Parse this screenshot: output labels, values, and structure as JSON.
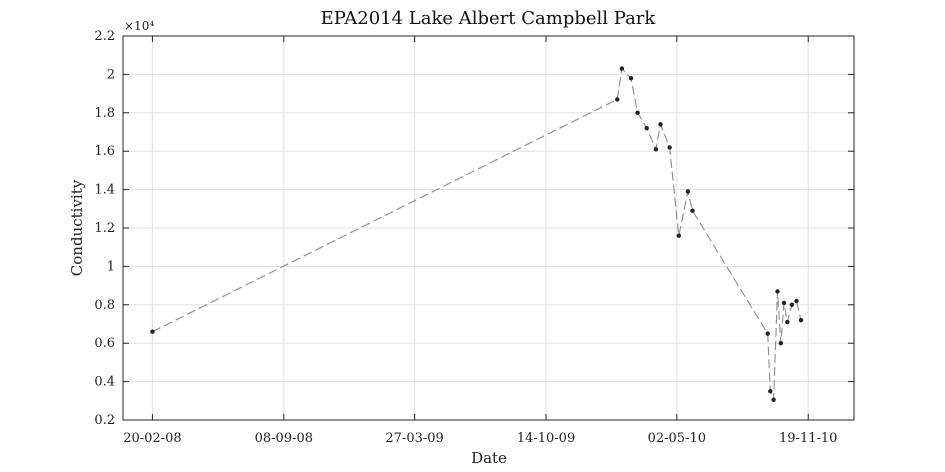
{
  "chart_data": {
    "type": "line",
    "title": "EPA2014 Lake Albert Campbell Park",
    "xlabel": "Date",
    "ylabel": "Conductivity",
    "y_exponent_label": "×10⁴",
    "y_tick_labels": [
      "0.2",
      "0.4",
      "0.6",
      "0.8",
      "1",
      "1.2",
      "1.4",
      "1.6",
      "1.8",
      "2",
      "2.2"
    ],
    "y_ticks": [
      2000,
      4000,
      6000,
      8000,
      10000,
      12000,
      14000,
      16000,
      18000,
      20000,
      22000
    ],
    "ylim": [
      2000,
      22000
    ],
    "x_tick_labels": [
      "20-02-08",
      "08-09-08",
      "27-03-09",
      "14-10-09",
      "02-05-10",
      "19-11-10"
    ],
    "x_ticks": [
      "2008-02-20",
      "2008-09-08",
      "2009-03-27",
      "2009-10-14",
      "2010-05-02",
      "2010-11-19"
    ],
    "xlim": [
      "2008-01-06",
      "2011-01-28"
    ],
    "grid": true,
    "line_style": "dashed",
    "line_color": "#8c8c8c",
    "marker_color": "#222222",
    "series": [
      {
        "x": [
          "2008-02-20",
          "2010-01-31",
          "2010-02-07",
          "2010-02-21",
          "2010-03-03",
          "2010-03-17",
          "2010-03-31",
          "2010-04-07",
          "2010-04-21",
          "2010-05-05",
          "2010-05-19",
          "2010-05-26",
          "2010-09-18",
          "2010-09-22",
          "2010-09-27",
          "2010-10-03",
          "2010-10-08",
          "2010-10-13",
          "2010-10-18",
          "2010-10-25",
          "2010-11-01",
          "2010-11-08"
        ],
        "y": [
          6600,
          18700,
          20300,
          19800,
          18000,
          17200,
          16100,
          17400,
          16200,
          11600,
          13900,
          12900,
          6500,
          3500,
          3050,
          8700,
          6000,
          8100,
          7100,
          8000,
          8200,
          7200
        ]
      }
    ]
  }
}
